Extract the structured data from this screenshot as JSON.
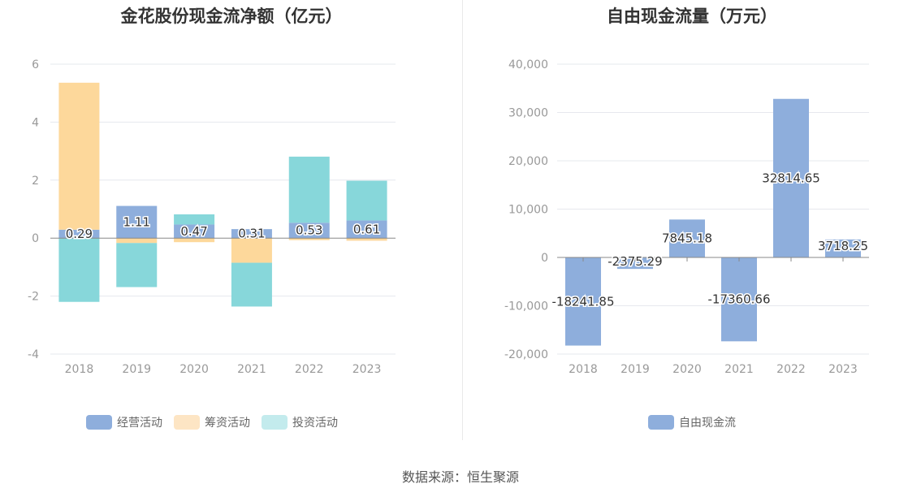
{
  "chart_data": [
    {
      "type": "bar",
      "title": "金花股份现金流净额（亿元）",
      "categories": [
        "2018",
        "2019",
        "2020",
        "2021",
        "2022",
        "2023"
      ],
      "series": [
        {
          "name": "经营活动",
          "values": [
            0.29,
            1.11,
            0.47,
            0.31,
            0.53,
            0.61
          ],
          "color": "#8eaedc",
          "labels": [
            "0.29",
            "1.11",
            "0.47",
            "0.31",
            "0.53",
            "0.61"
          ]
        },
        {
          "name": "筹资活动",
          "values": [
            5.07,
            -0.17,
            -0.14,
            -0.85,
            -0.07,
            -0.09
          ],
          "color": "#fdd89b"
        },
        {
          "name": "投资活动",
          "values": [
            -2.2,
            -1.52,
            0.35,
            -1.51,
            2.28,
            1.37
          ],
          "color": "#87d7da"
        }
      ],
      "legend_colors": [
        "#8eaedc",
        "#fde5c4",
        "#c3ebed"
      ],
      "yticks": [
        "6",
        "4",
        "2",
        "0",
        "-2",
        "-4"
      ],
      "ylim": [
        -4,
        6
      ],
      "stacked": true,
      "grid": true,
      "legend": "bottom"
    },
    {
      "type": "bar",
      "title": "自由现金流量（万元）",
      "categories": [
        "2018",
        "2019",
        "2020",
        "2021",
        "2022",
        "2023"
      ],
      "series": [
        {
          "name": "自由现金流",
          "values": [
            -18241.85,
            -2375.29,
            7845.18,
            -17360.66,
            32814.65,
            3718.25
          ],
          "color": "#8eaedc",
          "labels": [
            "-18241.85",
            "-2375.29",
            "7845.18",
            "-17360.66",
            "32814.65",
            "3718.25"
          ]
        }
      ],
      "yticks": [
        "40,000",
        "30,000",
        "20,000",
        "10,000",
        "0",
        "-10,000",
        "-20,000"
      ],
      "ylim": [
        -20000,
        40000
      ],
      "grid": true,
      "legend": "bottom"
    }
  ],
  "source": "数据来源：恒生聚源"
}
